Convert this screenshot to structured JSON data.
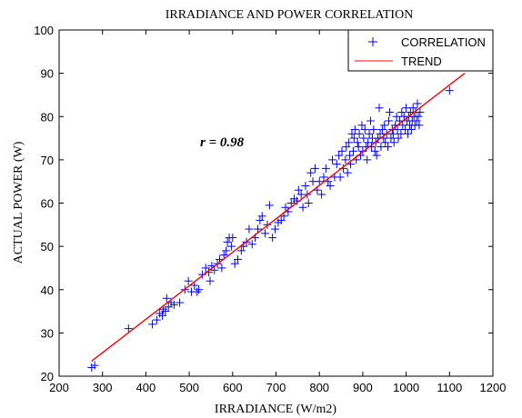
{
  "chart_data": {
    "type": "scatter",
    "title": "IRRADIANCE AND POWER CORRELATION",
    "xlabel": "IRRADIANCE (W/m2)",
    "ylabel": "ACTUAL POWER (W)",
    "xlim": [
      200,
      1200
    ],
    "ylim": [
      20,
      100
    ],
    "xticks": [
      200,
      300,
      400,
      500,
      600,
      700,
      800,
      900,
      1000,
      1100,
      1200
    ],
    "yticks": [
      20,
      30,
      40,
      50,
      60,
      70,
      80,
      90,
      100
    ],
    "grid": false,
    "legend_position": "top-right",
    "annotation": "r = 0.98",
    "colors": {
      "scatter": "#0000ff",
      "trend": "#ff0000"
    },
    "series": [
      {
        "name": "CORRELATION",
        "kind": "scatter",
        "marker": "+",
        "points": [
          [
            275,
            22
          ],
          [
            282,
            22.5
          ],
          [
            360,
            31
          ],
          [
            415,
            32
          ],
          [
            425,
            33
          ],
          [
            432,
            34.5
          ],
          [
            438,
            34
          ],
          [
            440,
            35.5
          ],
          [
            445,
            35
          ],
          [
            448,
            38
          ],
          [
            452,
            36
          ],
          [
            458,
            37
          ],
          [
            465,
            36.5
          ],
          [
            478,
            37
          ],
          [
            490,
            40
          ],
          [
            498,
            42
          ],
          [
            505,
            39.5
          ],
          [
            512,
            41
          ],
          [
            518,
            39.5
          ],
          [
            522,
            40
          ],
          [
            530,
            43.5
          ],
          [
            538,
            45
          ],
          [
            545,
            44
          ],
          [
            548,
            42
          ],
          [
            552,
            45.5
          ],
          [
            558,
            44.5
          ],
          [
            565,
            46
          ],
          [
            570,
            47
          ],
          [
            575,
            45
          ],
          [
            580,
            48
          ],
          [
            585,
            49
          ],
          [
            588,
            51
          ],
          [
            592,
            52
          ],
          [
            597,
            50
          ],
          [
            600,
            52
          ],
          [
            605,
            46
          ],
          [
            612,
            47
          ],
          [
            620,
            49
          ],
          [
            625,
            50
          ],
          [
            632,
            51
          ],
          [
            638,
            54
          ],
          [
            645,
            50.5
          ],
          [
            652,
            52
          ],
          [
            658,
            54
          ],
          [
            663,
            56
          ],
          [
            668,
            57
          ],
          [
            675,
            53
          ],
          [
            680,
            55
          ],
          [
            685,
            59.5
          ],
          [
            692,
            52
          ],
          [
            698,
            54
          ],
          [
            705,
            55.5
          ],
          [
            712,
            56
          ],
          [
            718,
            57
          ],
          [
            722,
            59
          ],
          [
            728,
            58
          ],
          [
            735,
            60
          ],
          [
            742,
            61
          ],
          [
            748,
            60.5
          ],
          [
            752,
            63
          ],
          [
            758,
            62
          ],
          [
            762,
            59
          ],
          [
            768,
            64
          ],
          [
            772,
            62
          ],
          [
            775,
            60
          ],
          [
            780,
            67
          ],
          [
            785,
            65
          ],
          [
            790,
            68
          ],
          [
            795,
            63
          ],
          [
            800,
            65
          ],
          [
            805,
            62
          ],
          [
            810,
            66
          ],
          [
            815,
            68
          ],
          [
            820,
            65
          ],
          [
            825,
            64
          ],
          [
            830,
            70
          ],
          [
            835,
            66
          ],
          [
            840,
            69
          ],
          [
            845,
            71
          ],
          [
            848,
            66
          ],
          [
            852,
            72
          ],
          [
            855,
            68
          ],
          [
            860,
            70
          ],
          [
            862,
            73
          ],
          [
            865,
            67
          ],
          [
            868,
            74
          ],
          [
            870,
            71
          ],
          [
            872,
            69
          ],
          [
            875,
            76
          ],
          [
            878,
            72
          ],
          [
            880,
            75
          ],
          [
            882,
            77
          ],
          [
            885,
            70
          ],
          [
            888,
            74
          ],
          [
            890,
            73
          ],
          [
            892,
            76
          ],
          [
            895,
            71
          ],
          [
            898,
            78
          ],
          [
            900,
            72
          ],
          [
            902,
            75
          ],
          [
            905,
            77
          ],
          [
            908,
            73
          ],
          [
            910,
            70
          ],
          [
            912,
            74
          ],
          [
            915,
            76
          ],
          [
            918,
            79
          ],
          [
            920,
            73
          ],
          [
            922,
            75
          ],
          [
            925,
            77
          ],
          [
            928,
            72
          ],
          [
            930,
            74
          ],
          [
            932,
            71
          ],
          [
            935,
            75
          ],
          [
            938,
            82
          ],
          [
            940,
            76
          ],
          [
            942,
            73
          ],
          [
            945,
            77
          ],
          [
            948,
            75
          ],
          [
            950,
            78
          ],
          [
            952,
            74
          ],
          [
            955,
            76
          ],
          [
            958,
            73
          ],
          [
            960,
            79
          ],
          [
            962,
            81
          ],
          [
            965,
            75
          ],
          [
            968,
            77
          ],
          [
            970,
            76
          ],
          [
            972,
            74
          ],
          [
            975,
            78
          ],
          [
            978,
            80
          ],
          [
            980,
            77
          ],
          [
            982,
            75
          ],
          [
            985,
            79
          ],
          [
            988,
            76
          ],
          [
            990,
            81
          ],
          [
            992,
            78
          ],
          [
            995,
            80
          ],
          [
            998,
            77
          ],
          [
            1000,
            82
          ],
          [
            1002,
            79
          ],
          [
            1004,
            76
          ],
          [
            1006,
            80
          ],
          [
            1008,
            78
          ],
          [
            1010,
            81
          ],
          [
            1012,
            77
          ],
          [
            1014,
            79
          ],
          [
            1016,
            82
          ],
          [
            1018,
            80
          ],
          [
            1020,
            78
          ],
          [
            1022,
            81
          ],
          [
            1024,
            79
          ],
          [
            1026,
            83
          ],
          [
            1028,
            80
          ],
          [
            1030,
            78
          ],
          [
            1032,
            81
          ],
          [
            1100,
            86
          ]
        ]
      },
      {
        "name": "TREND",
        "kind": "line",
        "points": [
          [
            275,
            23.5
          ],
          [
            1135,
            90
          ]
        ]
      }
    ]
  }
}
